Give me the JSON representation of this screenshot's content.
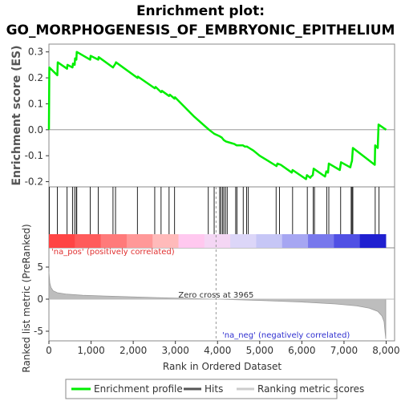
{
  "chart_data": {
    "type": "line",
    "title_line1": "Enrichment plot:",
    "title_line2": "GO_MORPHOGENESIS_OF_EMBRYONIC_EPITHELIUM",
    "es_panel": {
      "ylabel": "Enrichment score (ES)",
      "ylim": [
        -0.22,
        0.33
      ],
      "yticks": [
        -0.2,
        -0.1,
        0.0,
        0.1,
        0.2,
        0.3
      ],
      "ytick_labels": [
        "-0.2",
        "-0.1",
        "0.0",
        "0.1",
        "0.2",
        "0.3"
      ],
      "series": [
        {
          "name": "Enrichment profile",
          "color": "#00ee00",
          "x": [
            0,
            10,
            200,
            210,
            430,
            440,
            560,
            570,
            610,
            620,
            650,
            660,
            980,
            990,
            1170,
            1180,
            1520,
            1540,
            1580,
            1590,
            2100,
            2110,
            2510,
            2530,
            2660,
            2680,
            2850,
            2870,
            2980,
            2990,
            3450,
            3800,
            3920,
            4050,
            4100,
            4150,
            4200,
            4300,
            4400,
            4450,
            4600,
            4650,
            4700,
            4750,
            4850,
            5000,
            5200,
            5350,
            5400,
            5420,
            5500,
            5760,
            5780,
            6100,
            6120,
            6200,
            6220,
            6260,
            6280,
            6550,
            6580,
            6620,
            6640,
            6900,
            6930,
            7150,
            7170,
            7190,
            7210,
            7730,
            7740,
            7800,
            7820,
            8000
          ],
          "y": [
            0.0,
            0.24,
            0.21,
            0.26,
            0.235,
            0.25,
            0.24,
            0.255,
            0.25,
            0.275,
            0.27,
            0.3,
            0.27,
            0.285,
            0.27,
            0.28,
            0.24,
            0.245,
            0.255,
            0.26,
            0.2,
            0.205,
            0.16,
            0.165,
            0.145,
            0.15,
            0.13,
            0.135,
            0.12,
            0.125,
            0.05,
            0.0,
            -0.015,
            -0.025,
            -0.03,
            -0.04,
            -0.045,
            -0.05,
            -0.055,
            -0.06,
            -0.06,
            -0.065,
            -0.065,
            -0.07,
            -0.08,
            -0.1,
            -0.12,
            -0.135,
            -0.14,
            -0.13,
            -0.135,
            -0.165,
            -0.155,
            -0.19,
            -0.175,
            -0.185,
            -0.18,
            -0.175,
            -0.15,
            -0.18,
            -0.16,
            -0.165,
            -0.13,
            -0.155,
            -0.125,
            -0.145,
            -0.13,
            -0.12,
            -0.07,
            -0.135,
            -0.06,
            -0.07,
            0.02,
            0.0
          ]
        }
      ],
      "hits": [
        10,
        200,
        430,
        560,
        610,
        650,
        660,
        980,
        1170,
        1520,
        1580,
        2100,
        2510,
        2660,
        2850,
        2980,
        3780,
        3920,
        4050,
        4080,
        4120,
        4150,
        4190,
        4230,
        4430,
        4460,
        4610,
        4690,
        4730,
        5390,
        5470,
        5780,
        6130,
        6270,
        6300,
        6590,
        6640,
        6920,
        7170,
        7190,
        7210,
        7740,
        7830
      ],
      "hits_label": "Hits"
    },
    "rank_panel": {
      "ylabel": "Ranked list metric (PreRanked)",
      "xlabel": "Rank in Ordered Dataset",
      "xlim": [
        0,
        8200
      ],
      "xticks": [
        0,
        1000,
        2000,
        3000,
        4000,
        5000,
        6000,
        7000,
        8000
      ],
      "xtick_labels": [
        "0",
        "1,000",
        "2,000",
        "3,000",
        "4,000",
        "5,000",
        "6,000",
        "7,000",
        "8,000"
      ],
      "ylim": [
        -6.5,
        8
      ],
      "yticks": [
        -5,
        0,
        5
      ],
      "ytick_labels": [
        "-5",
        "0",
        "5"
      ],
      "zero_cross": 3965,
      "zero_cross_label": "Zero cross at 3965",
      "pos_label": "'na_pos' (positively correlated)",
      "neg_label": "'na_neg' (negatively correlated)",
      "metric_label": "Ranking metric scores",
      "curve": {
        "x": [
          0,
          20,
          50,
          100,
          200,
          400,
          800,
          1500,
          2500,
          3965,
          5000,
          6000,
          6800,
          7300,
          7600,
          7800,
          7900,
          7950,
          7990
        ],
        "y": [
          4.3,
          2.5,
          1.8,
          1.3,
          1.0,
          0.8,
          0.6,
          0.45,
          0.25,
          0.0,
          -0.2,
          -0.45,
          -0.75,
          -1.05,
          -1.4,
          -1.9,
          -2.6,
          -3.5,
          -6.2
        ]
      }
    },
    "heat_colors": [
      "#ff4444",
      "#ff5b5b",
      "#ff7a7a",
      "#ff9898",
      "#ffbaba",
      "#ffc8ef",
      "#f4d6f4",
      "#dcd6f8",
      "#c6c6f6",
      "#a6a6f2",
      "#7878ec",
      "#5050e4",
      "#2020d0"
    ],
    "legend": [
      {
        "label": "Enrichment profile",
        "color": "#00ee00"
      },
      {
        "label": "Hits",
        "color": "#555555"
      },
      {
        "label": "Ranking metric scores",
        "color": "#cccccc"
      }
    ]
  }
}
